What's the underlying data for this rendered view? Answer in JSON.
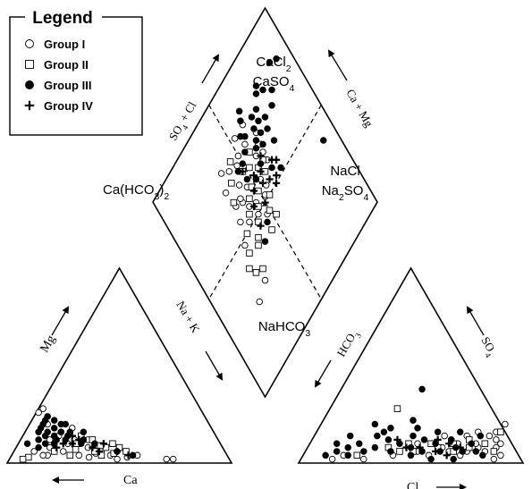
{
  "chart_data": {
    "type": "scatter",
    "subtype": "piper-diagram",
    "legend": {
      "title": "Legend",
      "placement": "top-left",
      "entries": [
        {
          "name": "Group I",
          "marker": "open-circle"
        },
        {
          "name": "Group II",
          "marker": "open-square"
        },
        {
          "name": "Group III",
          "marker": "filled-circle"
        },
        {
          "name": "Group IV",
          "marker": "plus"
        }
      ]
    },
    "axis_labels": {
      "cation_ca": "Ca",
      "cation_mg": "Mg",
      "cation_nak": "Na + K",
      "anion_cl": "Cl",
      "anion_so4": "SO4",
      "anion_hco3": "HCO3",
      "diamond_so4cl": "SO4 + Cl",
      "diamond_camg": "Ca + Mg"
    },
    "facies_labels": {
      "cacl2": "CaCl2",
      "caso4": "CaSO4",
      "cahco3": "Ca(HCO3)2",
      "nacl": "NaCl",
      "na2so4": "Na2SO4",
      "nahco3": "NaHCO3"
    },
    "cation_triangle": {
      "vertices": [
        "Ca",
        "Mg",
        "Na+K"
      ],
      "series": [
        {
          "name": "Group I",
          "points": [
            [
              80,
              4
            ],
            [
              68,
              10
            ],
            [
              72,
              6
            ],
            [
              60,
              8
            ],
            [
              75,
              12
            ],
            [
              62,
              18
            ],
            [
              58,
              5
            ],
            [
              85,
              6
            ],
            [
              70,
              14
            ],
            [
              66,
              4
            ],
            [
              55,
              6
            ],
            [
              40,
              4
            ],
            [
              28,
              2
            ],
            [
              25,
              2
            ],
            [
              45,
              3
            ],
            [
              50,
              2
            ],
            [
              82,
              4
            ],
            [
              77,
              8
            ],
            [
              64,
              12
            ],
            [
              58,
              12
            ],
            [
              68,
              16
            ],
            [
              72,
              20
            ],
            [
              73,
              26
            ],
            [
              70,
              28
            ],
            [
              62,
              3
            ],
            [
              52,
              4
            ]
          ]
        },
        {
          "name": "Group II",
          "points": [
            [
              76,
              6
            ],
            [
              64,
              10
            ],
            [
              56,
              12
            ],
            [
              52,
              8
            ],
            [
              48,
              10
            ],
            [
              70,
              4
            ],
            [
              58,
              6
            ],
            [
              46,
              8
            ],
            [
              60,
              14
            ],
            [
              50,
              5
            ],
            [
              54,
              9
            ],
            [
              44,
              6
            ],
            [
              89,
              3
            ],
            [
              92,
              2
            ],
            [
              66,
              7
            ],
            [
              56,
              4
            ]
          ]
        },
        {
          "name": "Group III",
          "points": [
            [
              80,
              12
            ],
            [
              74,
              16
            ],
            [
              70,
              18
            ],
            [
              78,
              10
            ],
            [
              76,
              14
            ],
            [
              72,
              14
            ],
            [
              68,
              16
            ],
            [
              74,
              20
            ],
            [
              72,
              22
            ],
            [
              70,
              24
            ],
            [
              66,
              14
            ],
            [
              64,
              16
            ],
            [
              66,
              20
            ],
            [
              62,
              10
            ],
            [
              58,
              16
            ],
            [
              74,
              10
            ],
            [
              82,
              8
            ],
            [
              78,
              16
            ],
            [
              86,
              10
            ],
            [
              68,
              12
            ],
            [
              60,
              12
            ],
            [
              56,
              10
            ],
            [
              48,
              6
            ],
            [
              42,
              4
            ],
            [
              76,
              18
            ],
            [
              72,
              12
            ],
            [
              64,
              20
            ],
            [
              68,
              22
            ]
          ]
        },
        {
          "name": "Group IV",
          "points": [
            [
              62,
              12
            ],
            [
              58,
              8
            ],
            [
              52,
              10
            ],
            [
              66,
              10
            ],
            [
              48,
              6
            ],
            [
              44,
              4
            ],
            [
              70,
              10
            ],
            [
              56,
              6
            ],
            [
              74,
              8
            ],
            [
              64,
              14
            ]
          ]
        }
      ]
    },
    "anion_triangle": {
      "vertices": [
        "HCO3",
        "SO4",
        "Cl"
      ],
      "series": [
        {
          "name": "Group I",
          "points": [
            [
              88,
              4
            ],
            [
              85,
              10
            ],
            [
              80,
              6
            ],
            [
              82,
              12
            ],
            [
              76,
              8
            ],
            [
              78,
              14
            ],
            [
              72,
              6
            ],
            [
              74,
              10
            ],
            [
              86,
              2
            ],
            [
              70,
              4
            ],
            [
              66,
              10
            ],
            [
              64,
              6
            ],
            [
              84,
              8
            ],
            [
              60,
              8
            ],
            [
              56,
              4
            ],
            [
              40,
              4
            ],
            [
              28,
              2
            ],
            [
              18,
              4
            ],
            [
              14,
              2
            ],
            [
              50,
              6
            ],
            [
              48,
              10
            ],
            [
              68,
              14
            ],
            [
              62,
              12
            ],
            [
              72,
              16
            ],
            [
              80,
              16
            ],
            [
              82,
              20
            ],
            [
              58,
              14
            ]
          ]
        },
        {
          "name": "Group II",
          "points": [
            [
              84,
              6
            ],
            [
              78,
              10
            ],
            [
              72,
              8
            ],
            [
              64,
              10
            ],
            [
              58,
              8
            ],
            [
              48,
              6
            ],
            [
              30,
              28
            ],
            [
              24,
              4
            ],
            [
              42,
              6
            ],
            [
              66,
              6
            ],
            [
              54,
              10
            ],
            [
              36,
              8
            ],
            [
              82,
              16
            ],
            [
              70,
              12
            ],
            [
              44,
              10
            ]
          ]
        },
        {
          "name": "Group III",
          "points": [
            [
              80,
              4
            ],
            [
              76,
              6
            ],
            [
              70,
              6
            ],
            [
              72,
              10
            ],
            [
              66,
              8
            ],
            [
              62,
              12
            ],
            [
              60,
              6
            ],
            [
              56,
              10
            ],
            [
              52,
              6
            ],
            [
              50,
              12
            ],
            [
              46,
              8
            ],
            [
              44,
              14
            ],
            [
              40,
              10
            ],
            [
              38,
              6
            ],
            [
              34,
              12
            ],
            [
              30,
              8
            ],
            [
              28,
              14
            ],
            [
              26,
              6
            ],
            [
              22,
              10
            ],
            [
              20,
              4
            ],
            [
              18,
              8
            ],
            [
              16,
              14
            ],
            [
              14,
              6
            ],
            [
              12,
              10
            ],
            [
              10,
              4
            ],
            [
              24,
              20
            ],
            [
              32,
              18
            ],
            [
              40,
              22
            ],
            [
              36,
              38
            ],
            [
              44,
              18
            ],
            [
              54,
              16
            ],
            [
              64,
              16
            ],
            [
              74,
              14
            ],
            [
              48,
              4
            ],
            [
              58,
              2
            ],
            [
              68,
              2
            ],
            [
              30,
              16
            ]
          ]
        },
        {
          "name": "Group IV",
          "points": [
            [
              68,
              8
            ],
            [
              62,
              10
            ],
            [
              56,
              12
            ],
            [
              50,
              8
            ],
            [
              44,
              8
            ],
            [
              38,
              12
            ],
            [
              64,
              4
            ],
            [
              58,
              6
            ]
          ]
        }
      ]
    },
    "diamond": {
      "axes": [
        "SO4+Cl",
        "Ca+Mg"
      ],
      "series": [
        {
          "name": "Group I",
          "points": [
            [
              35,
              70
            ],
            [
              42,
              74
            ],
            [
              47,
              72
            ],
            [
              50,
              74
            ],
            [
              53,
              80
            ],
            [
              38,
              77
            ],
            [
              43,
              66
            ],
            [
              36,
              62
            ],
            [
              40,
              60
            ],
            [
              46,
              62
            ],
            [
              42,
              56
            ],
            [
              46,
              54
            ],
            [
              52,
              60
            ],
            [
              54,
              58
            ],
            [
              34,
              56
            ],
            [
              38,
              52
            ],
            [
              58,
              66
            ],
            [
              64,
              72
            ],
            [
              56,
              74
            ],
            [
              60,
              80
            ],
            [
              44,
              50
            ],
            [
              48,
              46
            ],
            [
              52,
              52
            ],
            [
              30,
              48
            ],
            [
              62,
              60
            ],
            [
              55,
              54
            ],
            [
              30,
              30
            ],
            [
              22,
              27
            ],
            [
              62,
              64
            ],
            [
              40,
              62
            ]
          ]
        },
        {
          "name": "Group II",
          "points": [
            [
              40,
              70
            ],
            [
              45,
              76
            ],
            [
              48,
              68
            ],
            [
              52,
              66
            ],
            [
              36,
              64
            ],
            [
              44,
              58
            ],
            [
              48,
              60
            ],
            [
              50,
              56
            ],
            [
              40,
              54
            ],
            [
              56,
              62
            ],
            [
              58,
              58
            ],
            [
              46,
              52
            ],
            [
              34,
              50
            ],
            [
              42,
              48
            ],
            [
              50,
              46
            ],
            [
              38,
              44
            ],
            [
              30,
              44
            ],
            [
              36,
              42
            ],
            [
              46,
              40
            ],
            [
              26,
              40
            ],
            [
              28,
              36
            ],
            [
              32,
              34
            ],
            [
              56,
              70
            ],
            [
              62,
              68
            ],
            [
              60,
              62
            ],
            [
              54,
              50
            ],
            [
              52,
              42
            ]
          ]
        },
        {
          "name": "Group III",
          "points": [
            [
              62,
              85
            ],
            [
              60,
              82
            ],
            [
              66,
              78
            ],
            [
              64,
              74
            ],
            [
              70,
              78
            ],
            [
              62,
              70
            ],
            [
              58,
              76
            ],
            [
              54,
              72
            ],
            [
              60,
              68
            ],
            [
              66,
              70
            ],
            [
              68,
              74
            ],
            [
              72,
              72
            ],
            [
              50,
              70
            ],
            [
              56,
              78
            ],
            [
              74,
              82
            ],
            [
              78,
              80
            ],
            [
              76,
              84
            ],
            [
              88,
              84
            ],
            [
              92,
              82
            ],
            [
              82,
              76
            ],
            [
              70,
              68
            ],
            [
              64,
              66
            ],
            [
              58,
              62
            ],
            [
              52,
              60
            ],
            [
              48,
              64
            ],
            [
              46,
              70
            ],
            [
              78,
              72
            ],
            [
              70,
              62
            ],
            [
              62,
              56
            ],
            [
              46,
              44
            ],
            [
              40,
              40
            ],
            [
              92,
              40
            ],
            [
              66,
              52
            ]
          ]
        },
        {
          "name": "Group IV",
          "points": [
            [
              52,
              62
            ],
            [
              56,
              60
            ],
            [
              60,
              64
            ],
            [
              48,
              58
            ],
            [
              58,
              54
            ],
            [
              62,
              52
            ],
            [
              54,
              56
            ],
            [
              64,
              58
            ],
            [
              44,
              54
            ],
            [
              50,
              50
            ],
            [
              60,
              50
            ],
            [
              48,
              68
            ],
            [
              66,
              56
            ],
            [
              42,
              46
            ]
          ]
        }
      ]
    }
  }
}
